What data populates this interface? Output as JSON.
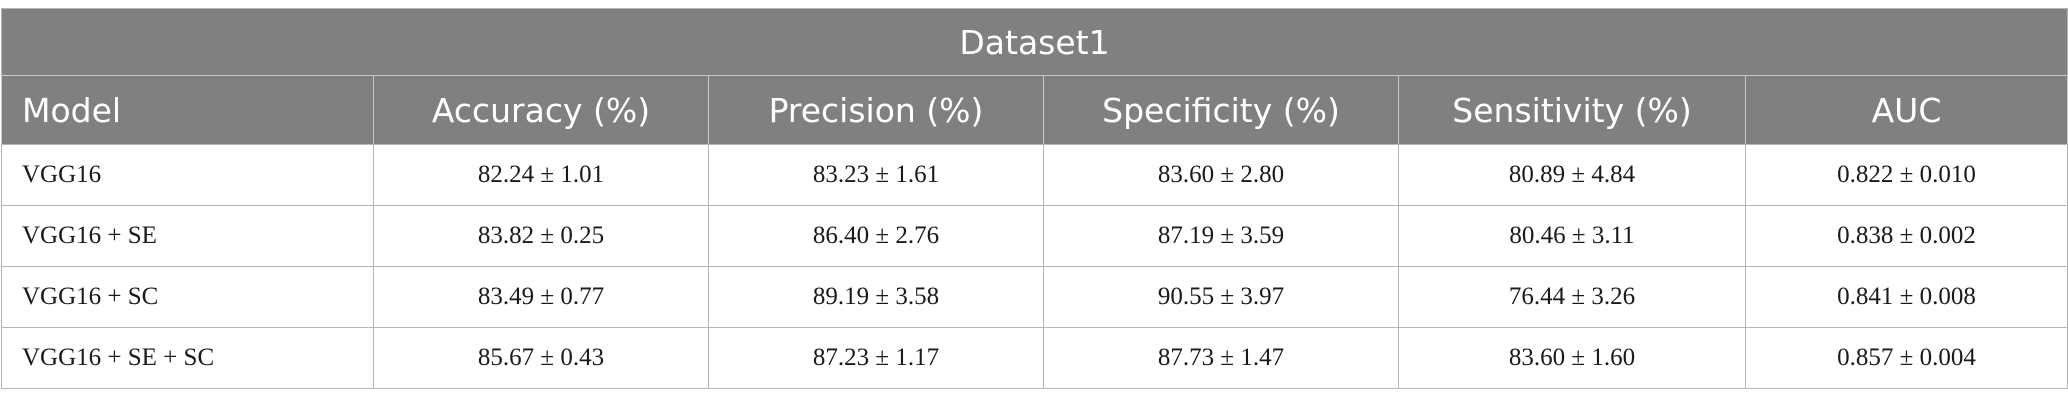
{
  "table": {
    "title": "Dataset1",
    "headers": [
      "Model",
      "Accuracy (%)",
      "Precision (%)",
      "Specificity (%)",
      "Sensitivity (%)",
      "AUC"
    ],
    "rows": [
      [
        "VGG16",
        "82.24 ± 1.01",
        "83.23 ± 1.61",
        "83.60 ± 2.80",
        "80.89 ± 4.84",
        "0.822 ± 0.010"
      ],
      [
        "VGG16 + SE",
        "83.82 ± 0.25",
        "86.40 ± 2.76",
        "87.19 ± 3.59",
        "80.46 ± 3.11",
        "0.838 ± 0.002"
      ],
      [
        "VGG16 + SC",
        "83.49 ± 0.77",
        "89.19 ± 3.58",
        "90.55 ± 3.97",
        "76.44 ± 3.26",
        "0.841 ± 0.008"
      ],
      [
        "VGG16 + SE + SC",
        "85.67 ± 0.43",
        "87.23 ± 1.17",
        "87.73 ± 1.47",
        "83.60 ± 1.60",
        "0.857 ± 0.004"
      ]
    ]
  }
}
